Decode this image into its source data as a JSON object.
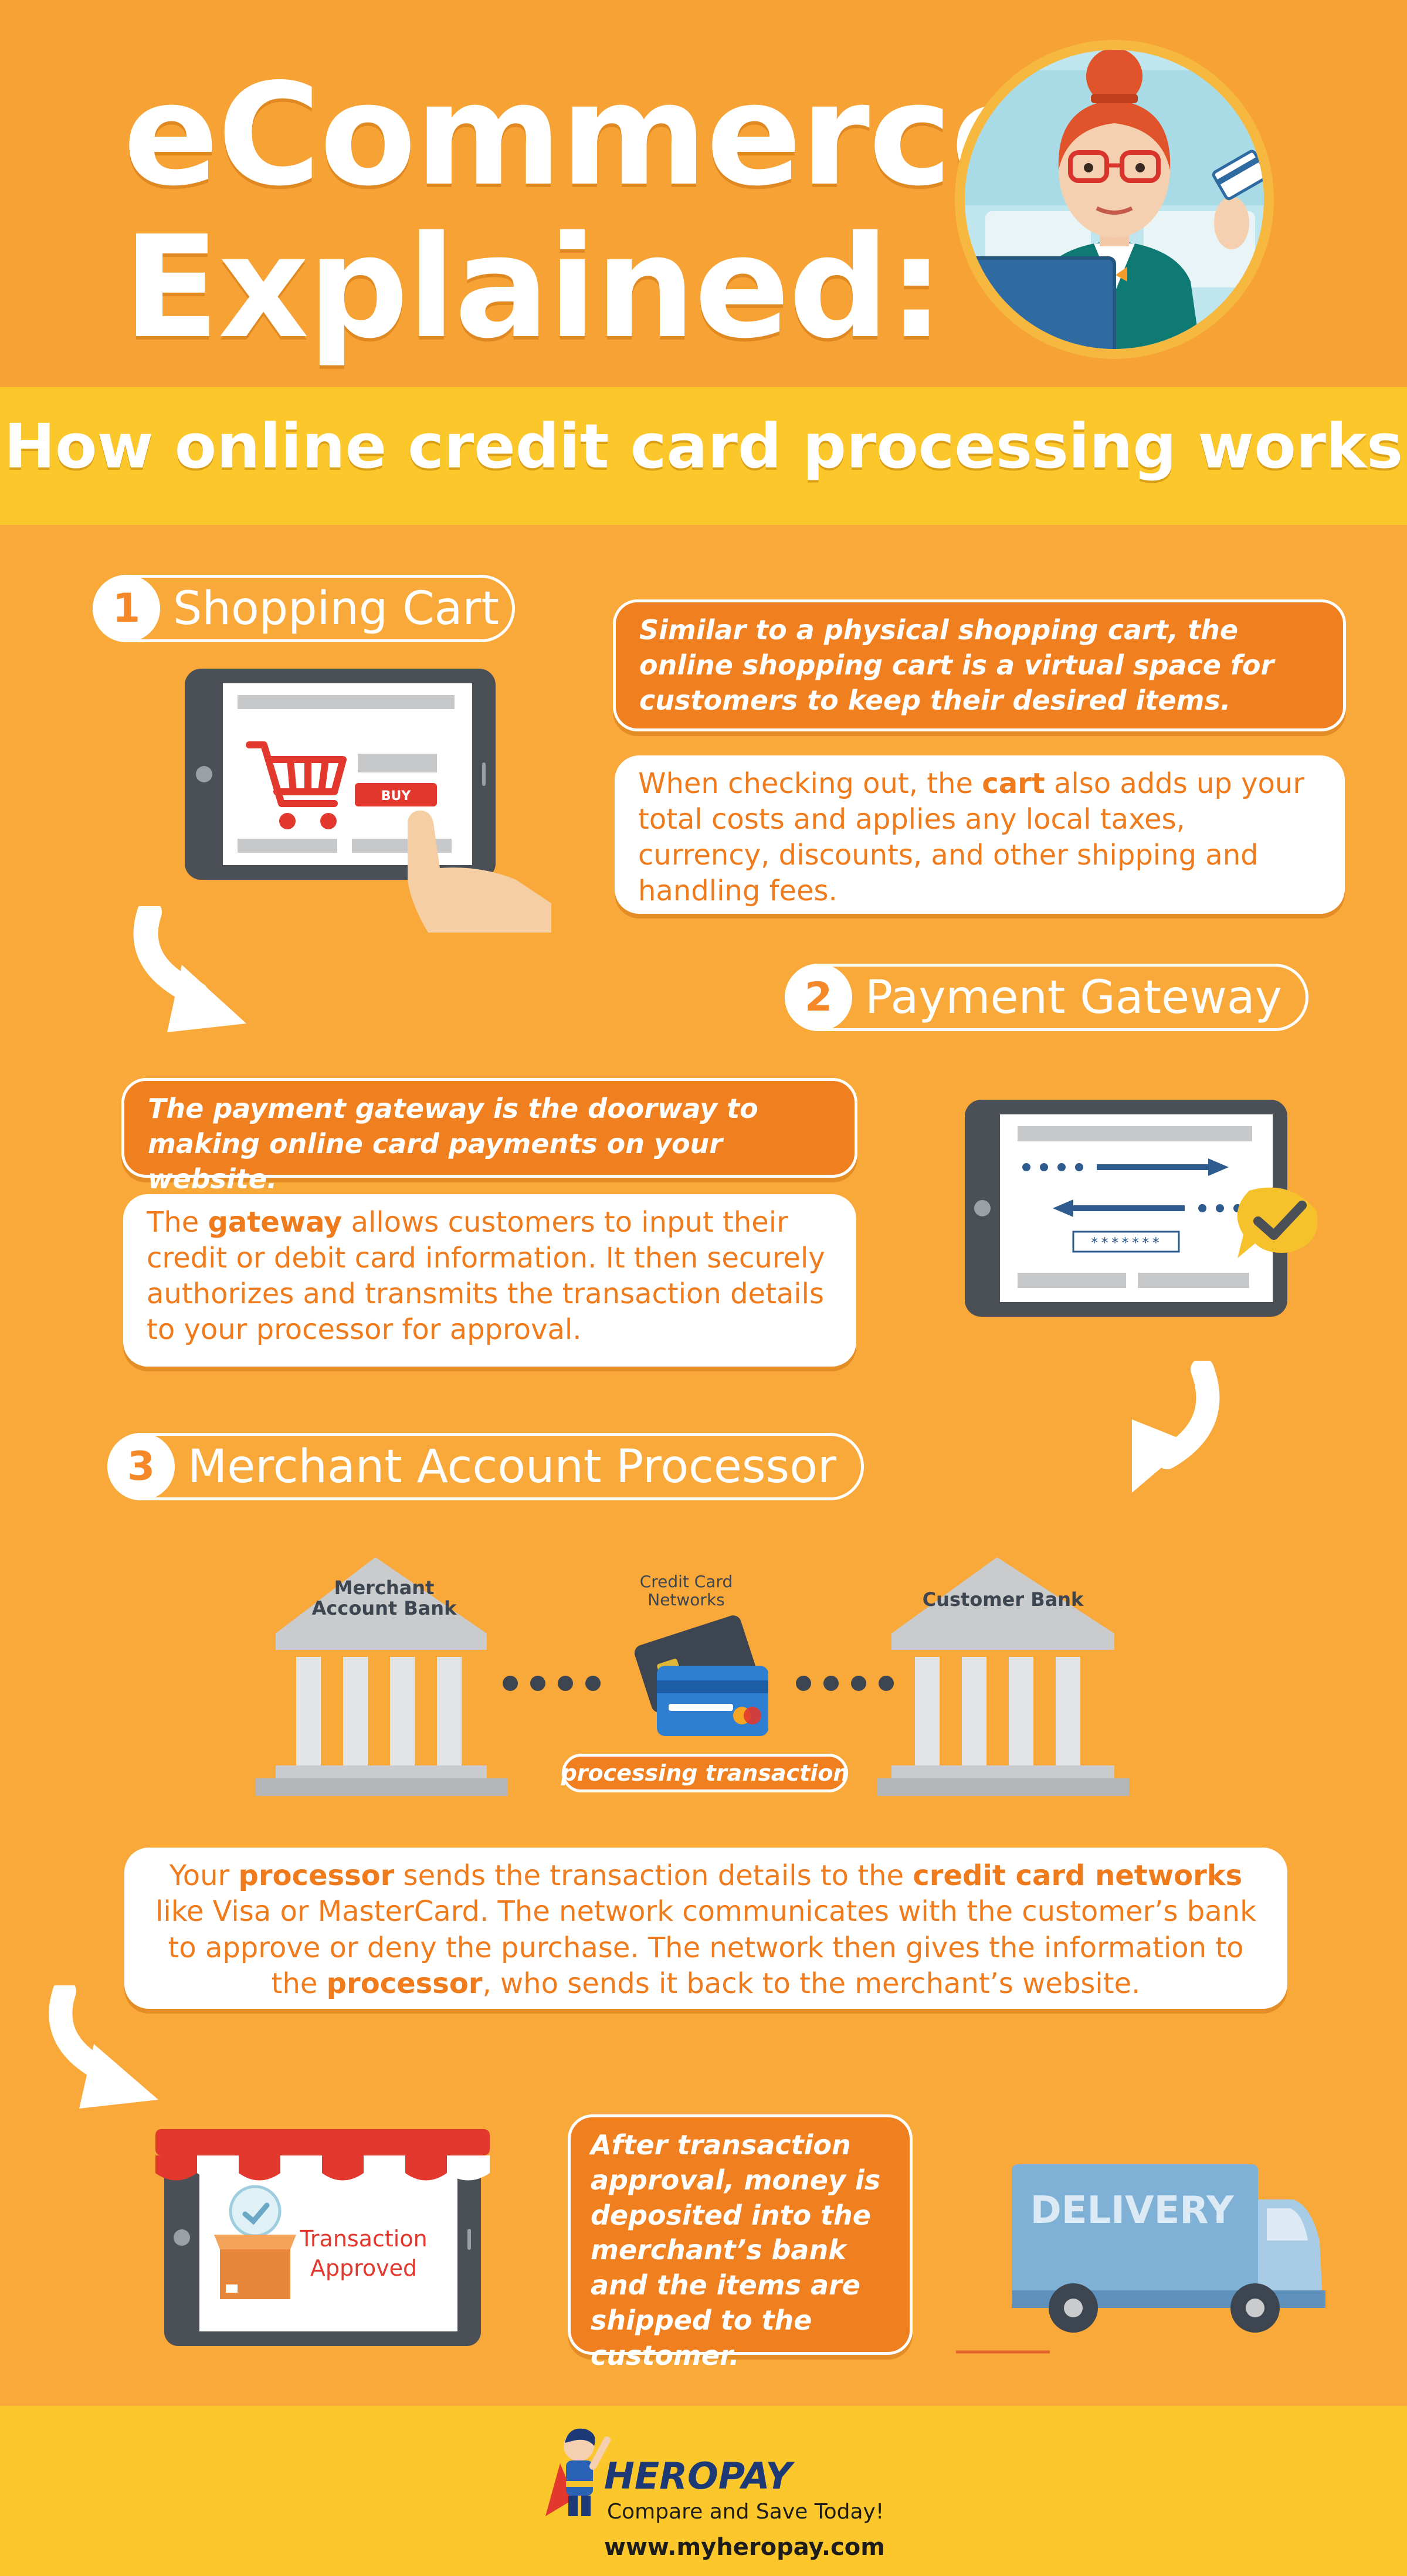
{
  "header": {
    "title_line1": "eCommerce",
    "title_line2": "Explained:",
    "subtitle": "How online credit card processing works"
  },
  "step1": {
    "number": "1",
    "label": "Shopping Cart",
    "intro": "Similar to a physical shopping cart, the online shopping cart is a virtual space for customers to keep their desired items.",
    "detail_before": "When checking out, the ",
    "detail_bold": "cart",
    "detail_after": " also adds up your total costs and applies any local taxes, currency, discounts, and other shipping and handling fees.",
    "buy_label": "BUY"
  },
  "step2": {
    "number": "2",
    "label": "Payment Gateway",
    "intro": "The payment gateway is the doorway to making online card payments on your website.",
    "detail_before": "The ",
    "detail_bold": "gateway",
    "detail_after": " allows customers to input their credit or debit card information. It then securely authorizes and transmits the transaction details to your processor for approval.",
    "password_mask": "*******"
  },
  "step3": {
    "number": "3",
    "label": "Merchant Account Processor",
    "merchant_bank_label": "Merchant Account Bank",
    "networks_label": "Credit Card Networks",
    "customer_bank_label": "Customer Bank",
    "processing_label": "processing transaction",
    "detail_p1": "Your ",
    "detail_b1": "processor",
    "detail_p2": " sends the transaction details to the ",
    "detail_b2": "credit card networks",
    "detail_p3": " like Visa or MasterCard. The network communicates with the customer’s bank to approve or deny the purchase. The network then gives the information to the ",
    "detail_b3": "processor",
    "detail_p4": ", who sends it back to the merchant’s website."
  },
  "final": {
    "approved_line1": "Transaction",
    "approved_line2": "Approved",
    "summary": "After transaction approval, money is deposited into the merchant’s bank and the items are shipped to the customer.",
    "truck_label": "DELIVERY"
  },
  "footer": {
    "brand": "HEROPAY",
    "tagline": "Compare and Save Today!",
    "website": "www.myheropay.com"
  },
  "colors": {
    "background": "#f9a83a",
    "band": "#fcc72b",
    "accent": "#f07f1f",
    "text_orange": "#ef7b1c",
    "device": "#4b4f56",
    "truck": "#7fb0d6"
  }
}
